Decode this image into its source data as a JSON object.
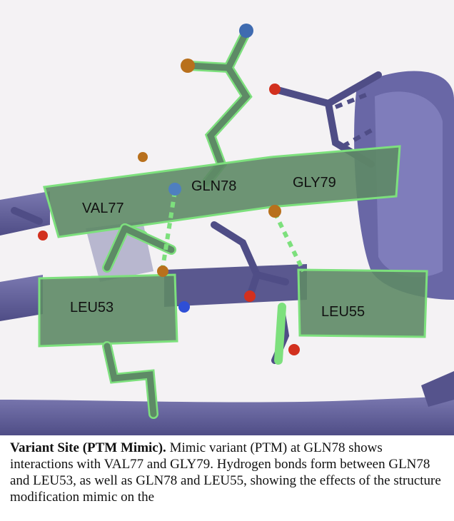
{
  "figure": {
    "labels": {
      "val77": "VAL77",
      "gln78": "GLN78",
      "gly79": "GLY79",
      "leu53": "LEU53",
      "leu55": "LEU55"
    },
    "colors": {
      "ribbon": "#605e9a",
      "ribbon_light": "#8684b8",
      "highlight_fill": "#5e8a66",
      "highlight_edge": "#7de07d",
      "oxygen": "#d2301e",
      "nitrogen": "#2f4fd6",
      "sulfur_orange": "#b8701c"
    }
  },
  "caption": {
    "title": "Variant Site (PTM Mimic).",
    "body": "Mimic variant (PTM) at GLN78 shows interactions with VAL77 and GLY79. Hydrogen bonds form between GLN78 and LEU53, as well as GLN78 and LEU55, showing the effects of the structure modification mimic on the"
  }
}
